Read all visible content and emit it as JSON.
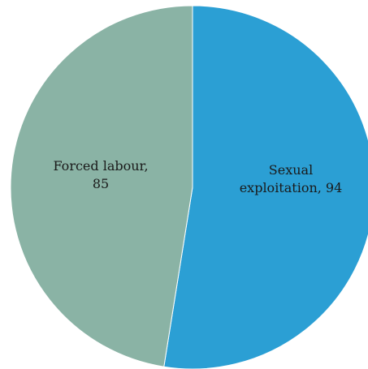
{
  "chart_data": {
    "type": "pie",
    "categories": [
      "Sexual exploitation",
      "Forced labour"
    ],
    "values": [
      94,
      85
    ],
    "colors": [
      "#2b9fd4",
      "#8ab3a5"
    ],
    "labels": [
      {
        "lines": [
          "Sexual",
          "exploitation, 94"
        ]
      },
      {
        "lines": [
          "Forced labour,",
          "85"
        ]
      }
    ],
    "start": "12 o'clock",
    "direction": "clockwise",
    "legend": "none"
  }
}
